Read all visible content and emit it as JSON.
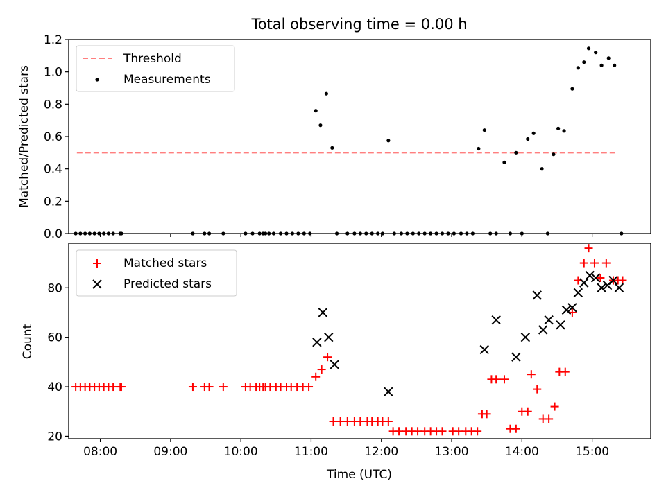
{
  "chart_data": [
    {
      "type": "scatter",
      "title": "Total observing time = 0.00 h",
      "xlabel": "",
      "ylabel": "Matched/Predicted stars",
      "xlim": [
        "07:33",
        "15:50"
      ],
      "ylim": [
        0,
        1.2
      ],
      "yticks": [
        "0.0",
        "0.2",
        "0.4",
        "0.6",
        "0.8",
        "1.0",
        "1.2"
      ],
      "xticks": [
        "08:00",
        "09:00",
        "10:00",
        "11:00",
        "12:00",
        "13:00",
        "14:00",
        "15:00"
      ],
      "show_x_tick_labels": false,
      "legend": "top-left",
      "threshold": {
        "name": "Threshold",
        "value": 0.5,
        "x_range": [
          "07:40",
          "15:20"
        ],
        "color": "#ff7f7f",
        "style": "dashed"
      },
      "series": [
        {
          "name": "Measurements",
          "marker": "dot",
          "color": "#000000",
          "x": [
            "07:39",
            "07:43",
            "07:47",
            "07:51",
            "07:55",
            "07:59",
            "08:03",
            "08:07",
            "08:11",
            "08:17",
            "08:18",
            "09:19",
            "09:29",
            "09:33",
            "09:45",
            "10:04",
            "10:10",
            "10:16",
            "10:19",
            "10:21",
            "10:24",
            "10:28",
            "10:34",
            "10:39",
            "10:44",
            "10:49",
            "10:54",
            "10:59",
            "11:04",
            "11:08",
            "11:13",
            "11:18",
            "11:22",
            "11:31",
            "11:37",
            "11:42",
            "11:47",
            "11:52",
            "11:57",
            "12:01",
            "12:06",
            "12:11",
            "12:17",
            "12:22",
            "12:27",
            "12:32",
            "12:37",
            "12:42",
            "12:47",
            "12:52",
            "12:57",
            "13:02",
            "13:08",
            "13:13",
            "13:18",
            "13:23",
            "13:28",
            "13:33",
            "13:38",
            "13:45",
            "13:50",
            "13:55",
            "14:00",
            "14:05",
            "14:10",
            "14:17",
            "14:22",
            "14:27",
            "14:31",
            "14:36",
            "14:43",
            "14:48",
            "14:53",
            "14:57",
            "15:03",
            "15:08",
            "15:14",
            "15:19",
            "15:25"
          ],
          "y": [
            0,
            0,
            0,
            0,
            0,
            0,
            0,
            0,
            0,
            0,
            0,
            0,
            0,
            0,
            0,
            0,
            0,
            0,
            0,
            0,
            0,
            0,
            0,
            0,
            0,
            0,
            0,
            0,
            0.76,
            0.67,
            0.865,
            0.53,
            0,
            0,
            0,
            0,
            0,
            0,
            0,
            0,
            0.575,
            0,
            0,
            0,
            0,
            0,
            0,
            0,
            0,
            0,
            0,
            0,
            0,
            0,
            0,
            0.525,
            0.64,
            0,
            0,
            0.44,
            0,
            0.5,
            0,
            0.585,
            0.62,
            0.4,
            0,
            0.49,
            0.65,
            0.635,
            0.895,
            1.025,
            1.06,
            1.145,
            1.12,
            1.04,
            1.085,
            1.04,
            0
          ]
        }
      ]
    },
    {
      "type": "scatter",
      "title": "",
      "xlabel": "Time (UTC)",
      "ylabel": "Count",
      "xlim": [
        "07:33",
        "15:50"
      ],
      "ylim": [
        19,
        98
      ],
      "yticks": [
        "20",
        "40",
        "60",
        "80"
      ],
      "xticks": [
        "08:00",
        "09:00",
        "10:00",
        "11:00",
        "12:00",
        "13:00",
        "14:00",
        "15:00"
      ],
      "legend": "top-left",
      "series": [
        {
          "name": "Matched stars",
          "marker": "plus",
          "color": "#ff0000",
          "x": [
            "07:39",
            "07:43",
            "07:47",
            "07:51",
            "07:55",
            "07:59",
            "08:03",
            "08:07",
            "08:11",
            "08:17",
            "08:18",
            "09:19",
            "09:29",
            "09:33",
            "09:45",
            "10:04",
            "10:08",
            "10:13",
            "10:16",
            "10:19",
            "10:21",
            "10:25",
            "10:30",
            "10:34",
            "10:39",
            "10:43",
            "10:48",
            "10:53",
            "10:58",
            "11:04",
            "11:09",
            "11:14",
            "11:19",
            "11:25",
            "11:31",
            "11:37",
            "11:42",
            "11:48",
            "11:52",
            "11:57",
            "12:01",
            "12:06",
            "12:10",
            "12:15",
            "12:21",
            "12:26",
            "12:31",
            "12:37",
            "12:42",
            "12:47",
            "12:52",
            "13:01",
            "13:06",
            "13:12",
            "13:17",
            "13:22",
            "13:26",
            "13:30",
            "13:34",
            "13:38",
            "13:45",
            "13:50",
            "13:55",
            "14:00",
            "14:05",
            "14:08",
            "14:13",
            "14:18",
            "14:23",
            "14:28",
            "14:32",
            "14:37",
            "14:43",
            "14:48",
            "14:53",
            "14:57",
            "15:02",
            "15:07",
            "15:12",
            "15:18",
            "15:22",
            "15:26"
          ],
          "y": [
            40,
            40,
            40,
            40,
            40,
            40,
            40,
            40,
            40,
            40,
            40,
            40,
            40,
            40,
            40,
            40,
            40,
            40,
            40,
            40,
            40,
            40,
            40,
            40,
            40,
            40,
            40,
            40,
            40,
            44,
            47,
            52,
            26,
            26,
            26,
            26,
            26,
            26,
            26,
            26,
            26,
            26,
            22,
            22,
            22,
            22,
            22,
            22,
            22,
            22,
            22,
            22,
            22,
            22,
            22,
            22,
            29,
            29,
            43,
            43,
            43,
            23,
            23,
            30,
            30,
            45,
            39,
            27,
            27,
            32,
            46,
            46,
            70,
            83,
            90,
            96,
            90,
            84,
            90,
            83,
            83,
            83
          ]
        },
        {
          "name": "Predicted stars",
          "marker": "x",
          "color": "#000000",
          "x": [
            "11:05",
            "11:10",
            "11:15",
            "11:20",
            "12:06",
            "13:28",
            "13:38",
            "13:55",
            "14:03",
            "14:13",
            "14:18",
            "14:23",
            "14:33",
            "14:38",
            "14:43",
            "14:48",
            "14:53",
            "14:58",
            "15:03",
            "15:08",
            "15:13",
            "15:18",
            "15:23"
          ],
          "y": [
            58,
            70,
            60,
            49,
            38,
            55,
            67,
            52,
            60,
            77,
            63,
            67,
            65,
            71,
            72,
            78,
            82,
            85,
            84,
            80,
            81,
            83,
            80
          ]
        }
      ]
    }
  ]
}
